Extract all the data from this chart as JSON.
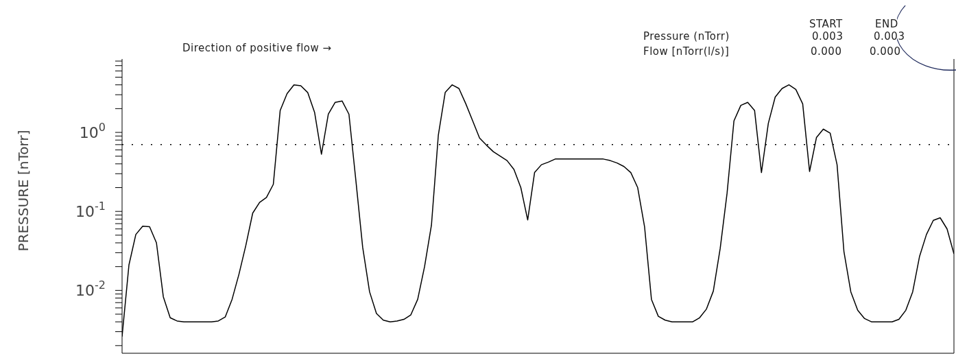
{
  "chart_data": {
    "type": "line",
    "ylabel": "PRESSURE [nTorr]",
    "log": true,
    "annotations": [
      "Direction of positive flow →",
      "START",
      "END",
      "Pressure (nTorr)",
      "0.003",
      "0.003",
      "Flow [nTorr(l/s)]",
      "0.000",
      "0.000"
    ],
    "categories": [
      null,
      null,
      null,
      null,
      null,
      null,
      null,
      null,
      null,
      null,
      null,
      null,
      null,
      null,
      null,
      null,
      null,
      null,
      null,
      null,
      null,
      null,
      null,
      null,
      null,
      null,
      null,
      null,
      null,
      null,
      null,
      null,
      null,
      null,
      null,
      null,
      null,
      null,
      null,
      null,
      null,
      null,
      null,
      null,
      null,
      null,
      null,
      null,
      null,
      null,
      null,
      null,
      null,
      null,
      null,
      null,
      null,
      null,
      null,
      null,
      null,
      null,
      null,
      null,
      null,
      null,
      null,
      null,
      null,
      null,
      null,
      null,
      null,
      null,
      null,
      null,
      null,
      null,
      null,
      null,
      null,
      null,
      null,
      null,
      null,
      null,
      null,
      null,
      null,
      null,
      null,
      null,
      null,
      null,
      null,
      null,
      null,
      null,
      null,
      null,
      null,
      null,
      null,
      null,
      null,
      null,
      null,
      null,
      null,
      null,
      null,
      null,
      null,
      null,
      null,
      null,
      null,
      null,
      null,
      null,
      null,
      null
    ],
    "series": [
      {
        "color": "#000000",
        "values": [
          0.0026,
          0.021,
          0.051,
          0.065,
          0.064,
          0.04,
          0.0083,
          0.0045,
          0.0041,
          0.004,
          0.004,
          0.004,
          0.004,
          0.004,
          0.0041,
          0.0046,
          0.0077,
          0.016,
          0.037,
          0.095,
          0.13,
          0.15,
          0.22,
          1.9,
          3.1,
          4.0,
          3.9,
          3.2,
          1.8,
          0.53,
          1.7,
          2.4,
          2.5,
          1.7,
          0.25,
          0.035,
          0.0096,
          0.0051,
          0.0042,
          0.004,
          0.0041,
          0.0043,
          0.0049,
          0.0077,
          0.02,
          0.067,
          0.92,
          3.2,
          4.0,
          3.6,
          2.3,
          1.4,
          0.85,
          0.69,
          0.57,
          0.5,
          0.44,
          0.34,
          0.2,
          0.078,
          0.31,
          0.39,
          0.42,
          0.46,
          0.46,
          0.46,
          0.46,
          0.46,
          0.46,
          0.46,
          0.46,
          0.44,
          0.41,
          0.37,
          0.31,
          0.2,
          0.064,
          0.0077,
          0.0047,
          0.0042,
          0.004,
          0.004,
          0.004,
          0.004,
          0.0045,
          0.0058,
          0.0098,
          0.034,
          0.17,
          1.4,
          2.2,
          2.4,
          1.9,
          0.31,
          1.3,
          2.8,
          3.6,
          4.0,
          3.5,
          2.3,
          0.32,
          0.86,
          1.1,
          0.98,
          0.39,
          0.031,
          0.0096,
          0.0056,
          0.0044,
          0.004,
          0.004,
          0.004,
          0.004,
          0.0043,
          0.0056,
          0.0096,
          0.027,
          0.051,
          0.077,
          0.083,
          0.06,
          0.029
        ]
      }
    ],
    "ylim": [
      0.0016,
      8.5
    ],
    "yticks": [
      {
        "value": 0.002,
        "label": null
      },
      {
        "value": 0.003,
        "label": null
      },
      {
        "value": 0.004,
        "label": null
      },
      {
        "value": 0.005,
        "label": null
      },
      {
        "value": 0.006,
        "label": null
      },
      {
        "value": 0.007,
        "label": null
      },
      {
        "value": 0.008,
        "label": null
      },
      {
        "value": 0.009,
        "label": null
      },
      {
        "value": 0.01,
        "label": "10$^{-2}$"
      },
      {
        "value": 0.02,
        "label": null
      },
      {
        "value": 0.03,
        "label": null
      },
      {
        "value": 0.04,
        "label": null
      },
      {
        "value": 0.05,
        "label": null
      },
      {
        "value": 0.06,
        "label": null
      },
      {
        "value": 0.07,
        "label": null
      },
      {
        "value": 0.08,
        "label": null
      },
      {
        "value": 0.09,
        "label": null
      },
      {
        "value": 0.1,
        "label": "10$^{-1}$"
      },
      {
        "value": 0.2,
        "label": null
      },
      {
        "value": 0.3,
        "label": null
      },
      {
        "value": 0.4,
        "label": null
      },
      {
        "value": 0.5,
        "label": null
      },
      {
        "value": 0.6,
        "label": null
      },
      {
        "value": 0.7,
        "label": null
      },
      {
        "value": 0.8,
        "label": null
      },
      {
        "value": 0.9,
        "label": null
      },
      {
        "value": 1,
        "label": "10$^{0}$"
      },
      {
        "value": 2,
        "label": null
      },
      {
        "value": 3,
        "label": null
      },
      {
        "value": 4,
        "label": null
      },
      {
        "value": 5,
        "label": null
      },
      {
        "value": 6,
        "label": null
      },
      {
        "value": 7,
        "label": null
      },
      {
        "value": 8,
        "label": null
      }
    ],
    "ref_lines": [
      {
        "axis": "y",
        "value": 0.7,
        "line_style": "dotted",
        "color": "#000000"
      }
    ]
  }
}
